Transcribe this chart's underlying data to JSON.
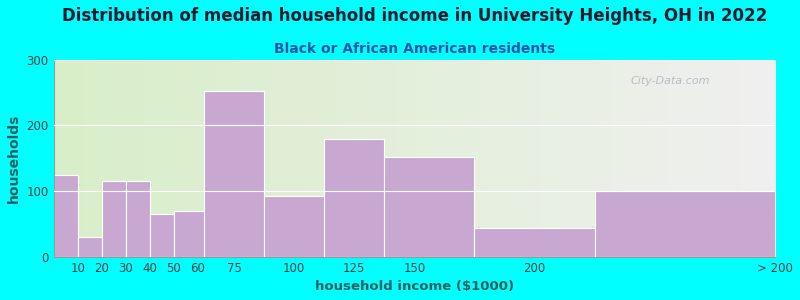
{
  "title": "Distribution of median household income in University Heights, OH in 2022",
  "subtitle": "Black or African American residents",
  "xlabel": "household income ($1000)",
  "ylabel": "households",
  "bar_lefts": [
    0,
    10,
    20,
    30,
    40,
    50,
    62.5,
    87.5,
    112.5,
    137.5,
    175,
    225
  ],
  "bar_widths": [
    10,
    10,
    10,
    10,
    10,
    12.5,
    25,
    25,
    25,
    37.5,
    50,
    75
  ],
  "bar_values": [
    125,
    30,
    115,
    115,
    65,
    70,
    252,
    93,
    180,
    152,
    43,
    100
  ],
  "bar_xticks": [
    10,
    20,
    30,
    40,
    50,
    60,
    75,
    100,
    125,
    150,
    200,
    300
  ],
  "bar_tick_labels": [
    "10",
    "20",
    "30",
    "40",
    "50",
    "60",
    "75",
    "100",
    "125",
    "150",
    "200",
    "> 200"
  ],
  "bar_color": "#C8A8D0",
  "bg_color_left": "#D8EEC8",
  "bg_color_right": "#F0F0F0",
  "outer_bg": "#00FFFF",
  "title_color": "#1a1a2e",
  "subtitle_color": "#2255AA",
  "axis_label_color": "#2a6060",
  "tick_color": "#404040",
  "ylim": [
    0,
    300
  ],
  "yticks": [
    0,
    100,
    200,
    300
  ],
  "xlim": [
    0,
    300
  ],
  "watermark": "City-Data.com",
  "title_fontsize": 12,
  "subtitle_fontsize": 10,
  "label_fontsize": 8.5,
  "ylabel_fontsize": 9
}
